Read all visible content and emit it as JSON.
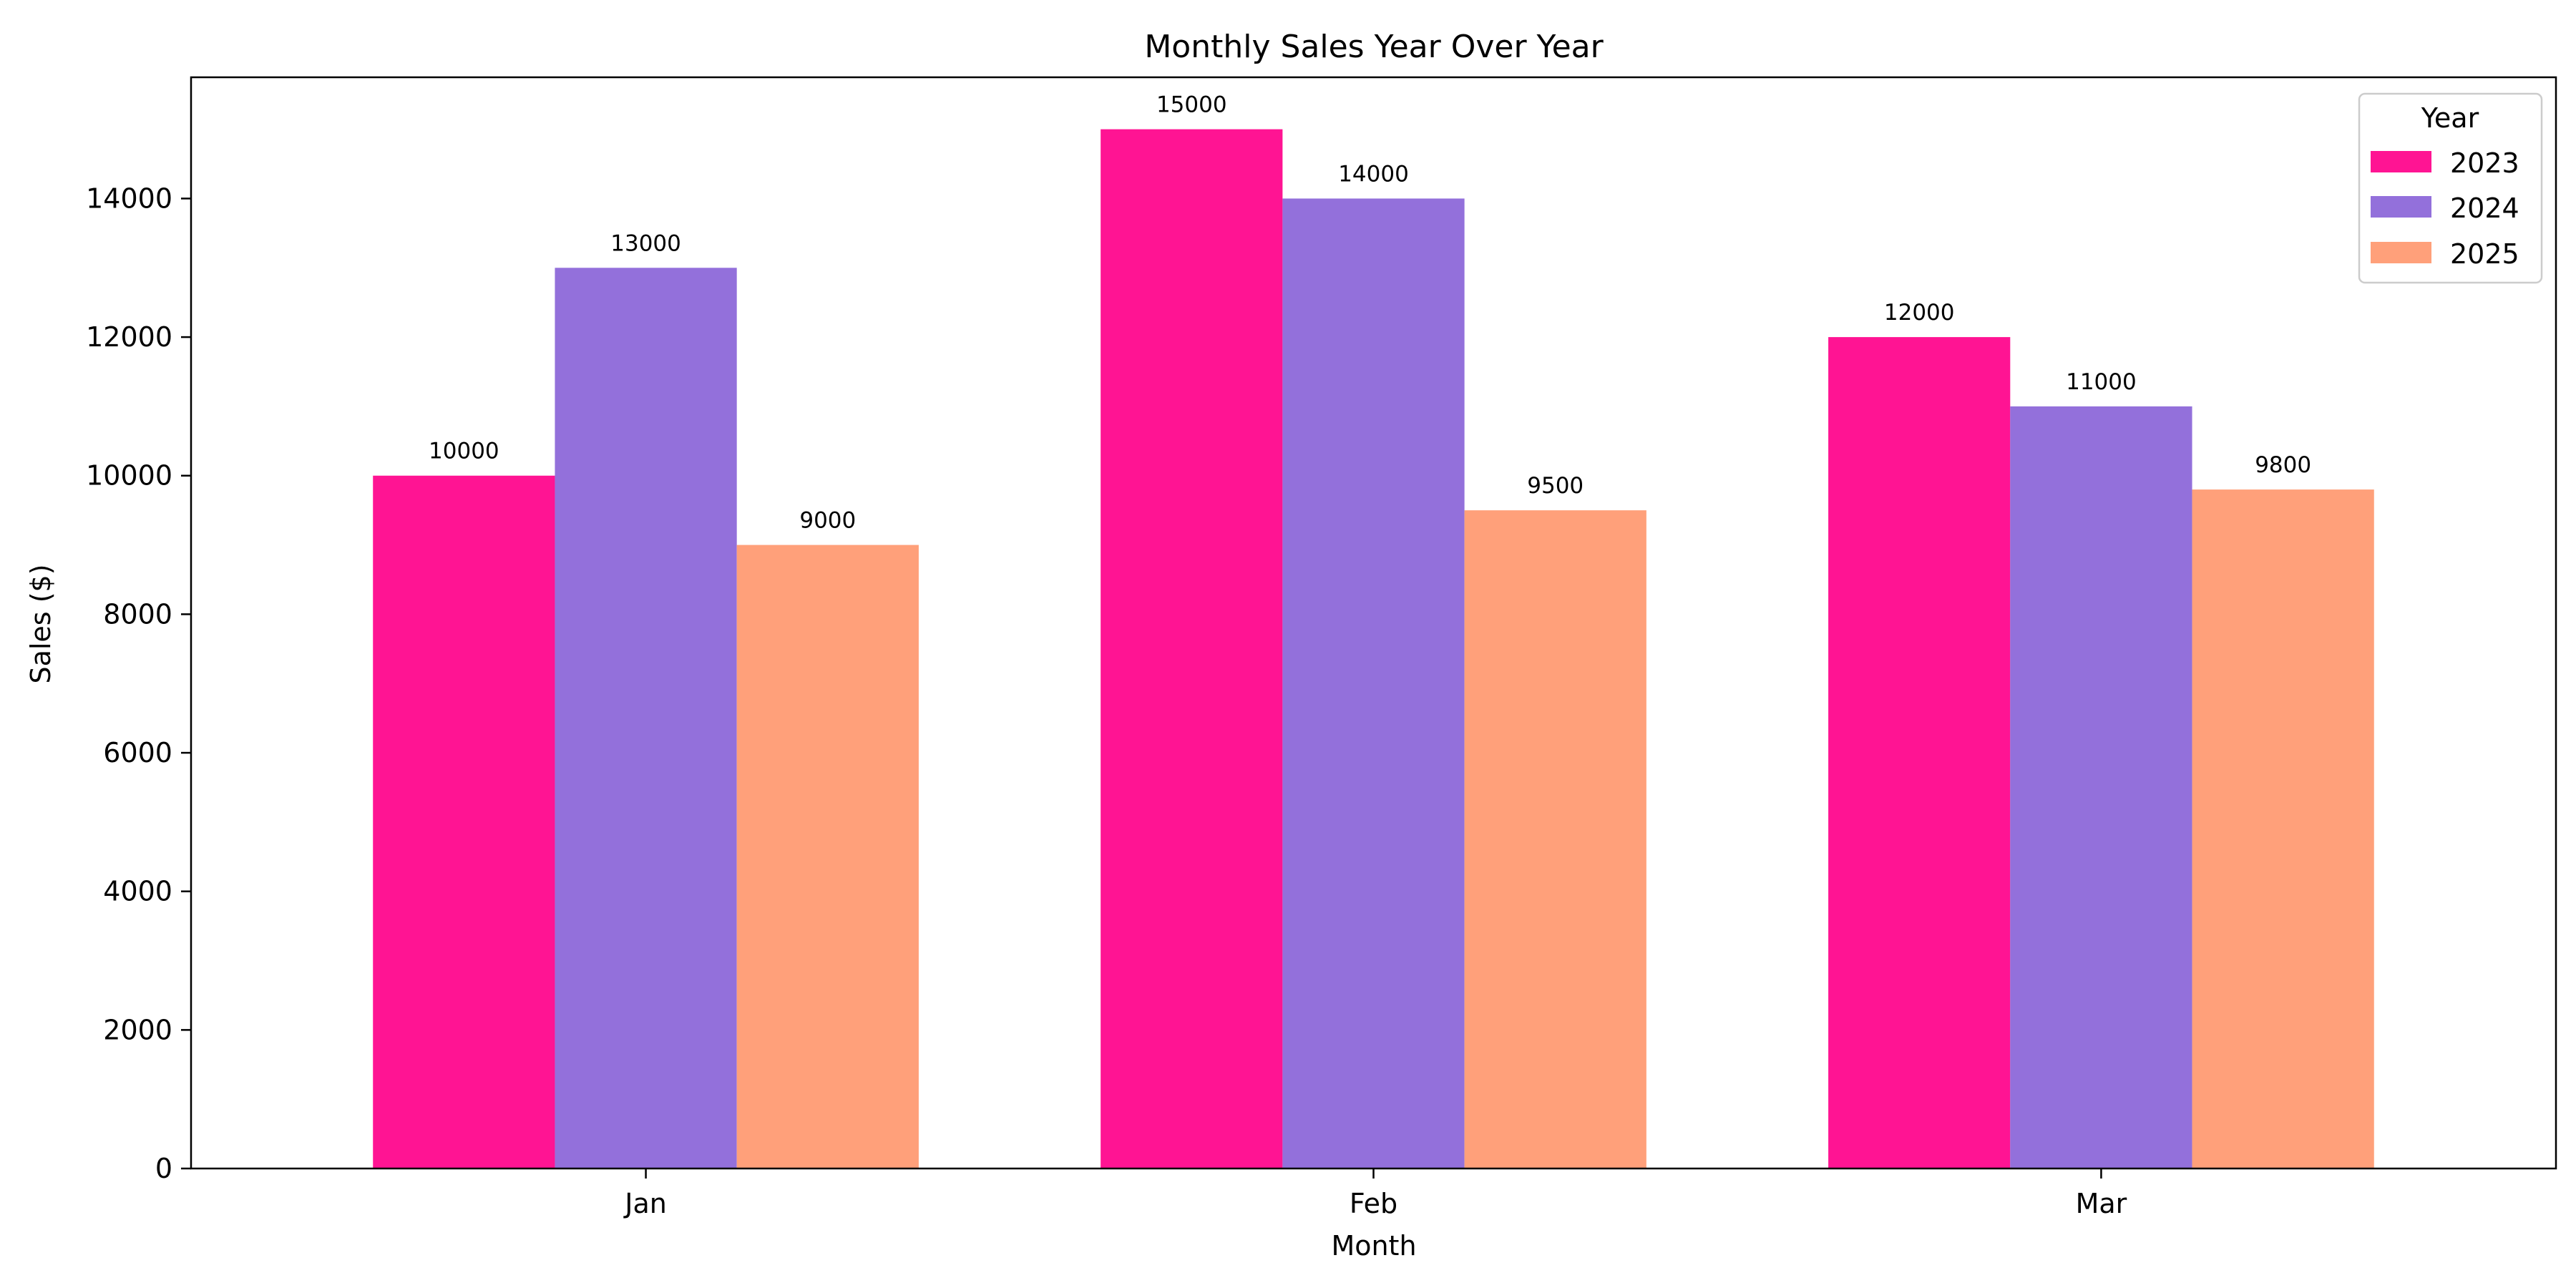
{
  "chart_data": {
    "type": "bar",
    "title": "Monthly Sales Year Over Year",
    "xlabel": "Month",
    "ylabel": "Sales ($)",
    "categories": [
      "Jan",
      "Feb",
      "Mar"
    ],
    "ylim": [
      0,
      15750
    ],
    "yticks": [
      "0",
      "2000",
      "4000",
      "6000",
      "8000",
      "10000",
      "12000",
      "14000"
    ],
    "grid": false,
    "legend": {
      "title": "Year",
      "placement": "top-right"
    },
    "series": [
      {
        "name": "2023",
        "color": "#FF1493",
        "values": [
          10000,
          15000,
          12000
        ]
      },
      {
        "name": "2024",
        "color": "#9370DB",
        "values": [
          13000,
          14000,
          11000
        ]
      },
      {
        "name": "2025",
        "color": "#FFA07A",
        "values": [
          9000,
          9500,
          9800
        ]
      }
    ]
  }
}
